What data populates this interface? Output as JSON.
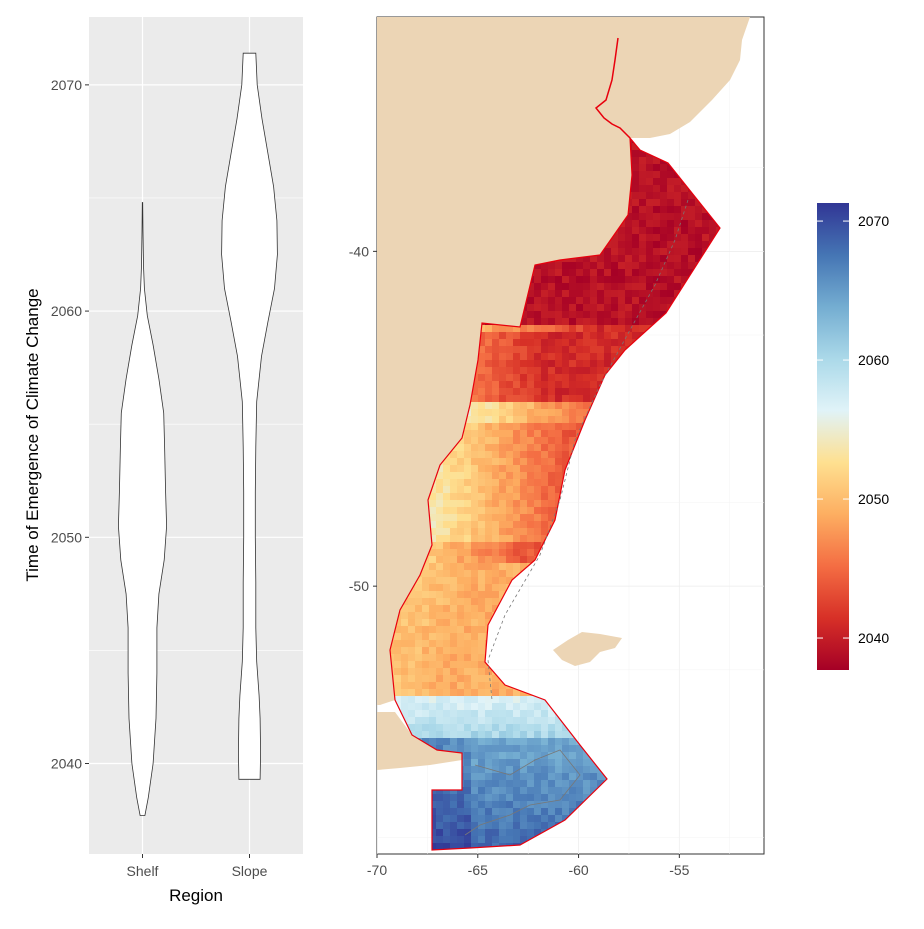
{
  "chart_data": [
    {
      "type": "violin",
      "xlabel": "Region",
      "ylabel": "Time of Emergence of Climate Change",
      "ylim": [
        2036,
        2073
      ],
      "y_ticks": [
        2040,
        2050,
        2060,
        2070
      ],
      "categories": [
        "Shelf",
        "Slope"
      ],
      "grid": true,
      "background": "#ebebeb",
      "violins": [
        {
          "category": "Shelf",
          "min": 2037.7,
          "max": 2064.8,
          "profile": [
            [
              2037.7,
              0.05
            ],
            [
              2038.5,
              0.12
            ],
            [
              2040.0,
              0.22
            ],
            [
              2042.0,
              0.28
            ],
            [
              2044.0,
              0.3
            ],
            [
              2046.0,
              0.3
            ],
            [
              2047.5,
              0.34
            ],
            [
              2049.0,
              0.45
            ],
            [
              2050.5,
              0.5
            ],
            [
              2052.0,
              0.48
            ],
            [
              2054.0,
              0.46
            ],
            [
              2055.5,
              0.44
            ],
            [
              2057.0,
              0.34
            ],
            [
              2058.5,
              0.22
            ],
            [
              2059.8,
              0.1
            ],
            [
              2061.0,
              0.04
            ],
            [
              2062.0,
              0.02
            ],
            [
              2063.5,
              0.01
            ],
            [
              2064.8,
              0.005
            ]
          ]
        },
        {
          "category": "Slope",
          "min": 2039.3,
          "max": 2071.4,
          "profile": [
            [
              2039.3,
              0.22
            ],
            [
              2040.5,
              0.23
            ],
            [
              2042.0,
              0.22
            ],
            [
              2043.0,
              0.2
            ],
            [
              2044.5,
              0.15
            ],
            [
              2046.0,
              0.13
            ],
            [
              2048.0,
              0.13
            ],
            [
              2050.0,
              0.12
            ],
            [
              2052.0,
              0.12
            ],
            [
              2054.0,
              0.13
            ],
            [
              2056.0,
              0.15
            ],
            [
              2058.0,
              0.25
            ],
            [
              2059.5,
              0.38
            ],
            [
              2061.0,
              0.52
            ],
            [
              2062.5,
              0.58
            ],
            [
              2064.0,
              0.57
            ],
            [
              2065.5,
              0.5
            ],
            [
              2067.0,
              0.38
            ],
            [
              2068.5,
              0.26
            ],
            [
              2070.0,
              0.16
            ],
            [
              2071.4,
              0.13
            ]
          ]
        }
      ]
    },
    {
      "type": "heatmap",
      "xlim": [
        -70,
        -50.8
      ],
      "ylim": [
        -58,
        -33
      ],
      "x_ticks": [
        -70,
        -65,
        -60,
        -55
      ],
      "y_ticks": [
        -40,
        -50
      ],
      "grid": true,
      "colorbar": {
        "min": 2037.7,
        "max": 2071.3,
        "ticks": [
          2040,
          2050,
          2060,
          2070
        ],
        "palette": [
          "#a50026",
          "#d73027",
          "#f46d43",
          "#fdae61",
          "#fee090",
          "#e0f3f8",
          "#abd9e9",
          "#74add1",
          "#4575b4",
          "#313695"
        ],
        "placement": "right"
      },
      "colors": {
        "land": "#ecd5b5",
        "outline": "#e8000d",
        "contour": "#777777"
      }
    }
  ]
}
